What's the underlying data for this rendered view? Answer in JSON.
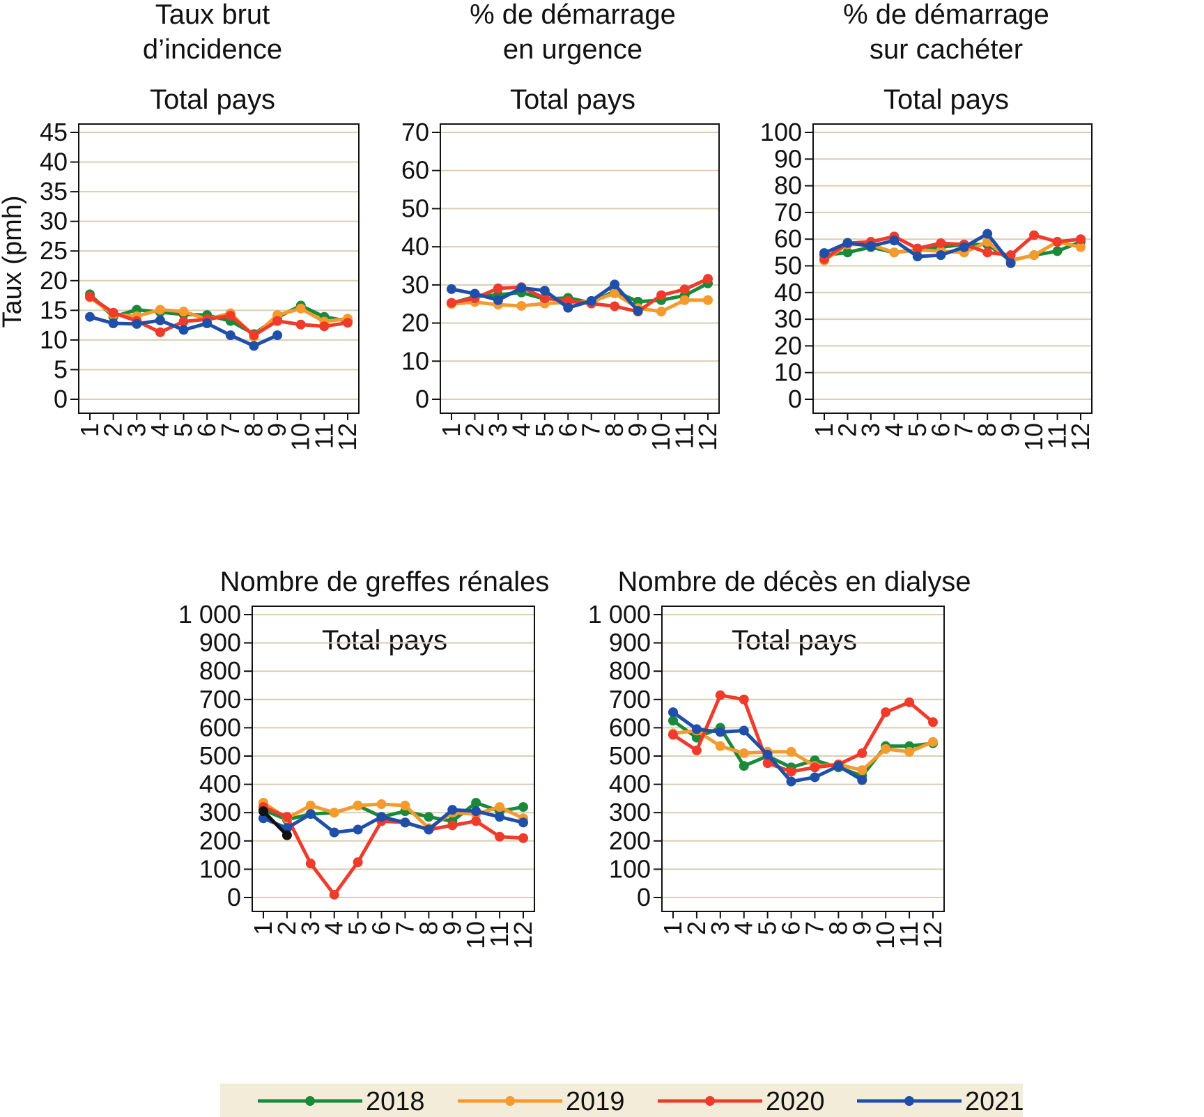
{
  "chart_data": [
    {
      "type": "line",
      "title": [
        "Taux brut",
        "d’incidence"
      ],
      "subtitle": "Total pays",
      "ylabel": "Taux (pmh)",
      "ylim": [
        0,
        45
      ],
      "yticks": [
        0,
        5,
        10,
        15,
        20,
        25,
        30,
        35,
        40,
        45
      ],
      "ytick_labels": [
        "0",
        "5",
        "10",
        "15",
        "20",
        "25",
        "30",
        "35",
        "40",
        "45"
      ],
      "x": [
        "1",
        "2",
        "3",
        "4",
        "5",
        "6",
        "7",
        "8",
        "9",
        "10",
        "11",
        "12"
      ],
      "grid": true,
      "series": [
        {
          "name": "2018",
          "values": [
            17.7,
            13.9,
            15.1,
            14.7,
            14.3,
            14.2,
            13.2,
            11.0,
            13.8,
            15.8,
            13.9,
            13.2
          ]
        },
        {
          "name": "2019",
          "values": [
            17.2,
            14.3,
            14.0,
            15.1,
            14.8,
            13.5,
            14.5,
            10.6,
            14.2,
            15.3,
            13.1,
            13.6
          ]
        },
        {
          "name": "2020",
          "values": [
            17.3,
            14.6,
            13.2,
            11.3,
            13.1,
            13.5,
            14.1,
            10.8,
            13.2,
            12.6,
            12.3,
            12.9
          ]
        },
        {
          "name": "2021",
          "values": [
            13.9,
            12.8,
            12.7,
            13.3,
            11.7,
            12.8,
            10.8,
            9.0,
            10.8,
            null,
            null,
            null
          ]
        }
      ]
    },
    {
      "type": "line",
      "title": [
        "% de démarrage",
        "en urgence"
      ],
      "subtitle": "Total pays",
      "ylabel": "",
      "ylim": [
        0,
        70
      ],
      "yticks": [
        0,
        10,
        20,
        30,
        40,
        50,
        60,
        70
      ],
      "ytick_labels": [
        "0",
        "10",
        "20",
        "30",
        "40",
        "50",
        "60",
        "70"
      ],
      "x": [
        "1",
        "2",
        "3",
        "4",
        "5",
        "6",
        "7",
        "8",
        "9",
        "10",
        "11",
        "12"
      ],
      "grid": true,
      "series": [
        {
          "name": "2018",
          "values": [
            25.2,
            26.9,
            27.4,
            28.0,
            26.3,
            26.6,
            25.3,
            28.4,
            25.6,
            26.0,
            27.2,
            30.4
          ]
        },
        {
          "name": "2019",
          "values": [
            25.0,
            25.5,
            24.8,
            24.5,
            25.1,
            25.4,
            25.6,
            27.8,
            23.9,
            23.0,
            26.0,
            26.0
          ]
        },
        {
          "name": "2020",
          "values": [
            25.3,
            26.5,
            29.1,
            29.4,
            26.5,
            25.8,
            25.1,
            24.4,
            23.0,
            27.3,
            28.8,
            31.6
          ]
        },
        {
          "name": "2021",
          "values": [
            28.9,
            27.7,
            26.0,
            29.2,
            28.5,
            24.0,
            25.8,
            30.1,
            23.2,
            null,
            null,
            null
          ]
        }
      ]
    },
    {
      "type": "line",
      "title": [
        "% de démarrage",
        "sur cachéter"
      ],
      "subtitle": "Total pays",
      "ylabel": "",
      "ylim": [
        0,
        100
      ],
      "yticks": [
        0,
        10,
        20,
        30,
        40,
        50,
        60,
        70,
        80,
        90,
        100
      ],
      "ytick_labels": [
        "0",
        "10",
        "20",
        "30",
        "40",
        "50",
        "60",
        "70",
        "80",
        "90",
        "100"
      ],
      "x": [
        "1",
        "2",
        "3",
        "4",
        "5",
        "6",
        "7",
        "8",
        "9",
        "10",
        "11",
        "12"
      ],
      "grid": true,
      "series": [
        {
          "name": "2018",
          "values": [
            54.0,
            55.0,
            57.0,
            55.0,
            56.0,
            57.0,
            58.0,
            58.0,
            52.0,
            54.0,
            55.5,
            59.0
          ]
        },
        {
          "name": "2019",
          "values": [
            52.0,
            58.0,
            58.0,
            55.0,
            56.0,
            55.5,
            55.0,
            59.0,
            52.0,
            54.0,
            59.0,
            57.0
          ]
        },
        {
          "name": "2020",
          "values": [
            52.5,
            58.5,
            59.0,
            61.0,
            56.5,
            58.5,
            58.0,
            55.0,
            54.0,
            61.5,
            59.0,
            60.0
          ]
        },
        {
          "name": "2021",
          "values": [
            54.8,
            58.6,
            57.4,
            59.5,
            53.5,
            54.0,
            57.0,
            62.0,
            51.0,
            null,
            null,
            null
          ]
        }
      ]
    },
    {
      "type": "line",
      "title": [
        "Nombre de greffes rénales"
      ],
      "subtitle": "Total pays",
      "ylabel": "",
      "ylim": [
        0,
        1000
      ],
      "yticks": [
        0,
        100,
        200,
        300,
        400,
        500,
        600,
        700,
        800,
        900,
        1000
      ],
      "ytick_labels": [
        "0",
        "100",
        "200",
        "300",
        "400",
        "500",
        "600",
        "700",
        "800",
        "900",
        "1 000"
      ],
      "x": [
        "1",
        "2",
        "3",
        "4",
        "5",
        "6",
        "7",
        "8",
        "9",
        "10",
        "11",
        "12"
      ],
      "grid": true,
      "series": [
        {
          "name": "2018",
          "values": [
            310,
            275,
            295,
            300,
            325,
            285,
            305,
            285,
            270,
            335,
            305,
            320
          ]
        },
        {
          "name": "2019",
          "values": [
            335,
            280,
            325,
            300,
            325,
            330,
            325,
            245,
            300,
            295,
            320,
            280
          ]
        },
        {
          "name": "2020",
          "values": [
            320,
            285,
            120,
            10,
            125,
            270,
            265,
            240,
            255,
            270,
            215,
            210
          ]
        },
        {
          "name": "2021",
          "values": [
            280,
            245,
            295,
            230,
            240,
            285,
            265,
            240,
            310,
            305,
            285,
            265
          ]
        },
        {
          "name": "",
          "color": "#111111",
          "values": [
            305,
            220,
            null,
            null,
            null,
            null,
            null,
            null,
            null,
            null,
            null,
            null
          ]
        }
      ]
    },
    {
      "type": "line",
      "title": [
        "Nombre de décès en dialyse"
      ],
      "subtitle": "Total pays",
      "ylabel": "",
      "ylim": [
        0,
        1000
      ],
      "yticks": [
        0,
        100,
        200,
        300,
        400,
        500,
        600,
        700,
        800,
        900,
        1000
      ],
      "ytick_labels": [
        "0",
        "100",
        "200",
        "300",
        "400",
        "500",
        "600",
        "700",
        "800",
        "900",
        "1 000"
      ],
      "x": [
        "1",
        "2",
        "3",
        "4",
        "5",
        "6",
        "7",
        "8",
        "9",
        "10",
        "11",
        "12"
      ],
      "grid": true,
      "series": [
        {
          "name": "2018",
          "values": [
            625,
            565,
            600,
            465,
            500,
            460,
            485,
            460,
            430,
            535,
            535,
            545
          ]
        },
        {
          "name": "2019",
          "values": [
            580,
            590,
            535,
            510,
            515,
            515,
            465,
            470,
            450,
            525,
            515,
            550
          ]
        },
        {
          "name": "2020",
          "values": [
            575,
            520,
            715,
            700,
            475,
            445,
            460,
            470,
            510,
            655,
            690,
            620
          ]
        },
        {
          "name": "2021",
          "values": [
            655,
            595,
            585,
            590,
            505,
            410,
            425,
            465,
            415,
            null,
            null,
            null
          ]
        }
      ]
    }
  ],
  "series_colors": {
    "2018": "#1a8a3a",
    "2019": "#f59a2e",
    "2020": "#ee3b2b",
    "2021": "#1f4fa8"
  },
  "legend": {
    "placement": "bottom",
    "items": [
      {
        "name": "2018",
        "color": "#1a8a3a"
      },
      {
        "name": "2019",
        "color": "#f59a2e"
      },
      {
        "name": "2020",
        "color": "#ee3b2b"
      },
      {
        "name": "2021",
        "color": "#1f4fa8"
      }
    ]
  },
  "style": {
    "grid_color": "#d9ceb0",
    "axis_color": "#111111",
    "legend_bg": "#f2ecd9"
  }
}
